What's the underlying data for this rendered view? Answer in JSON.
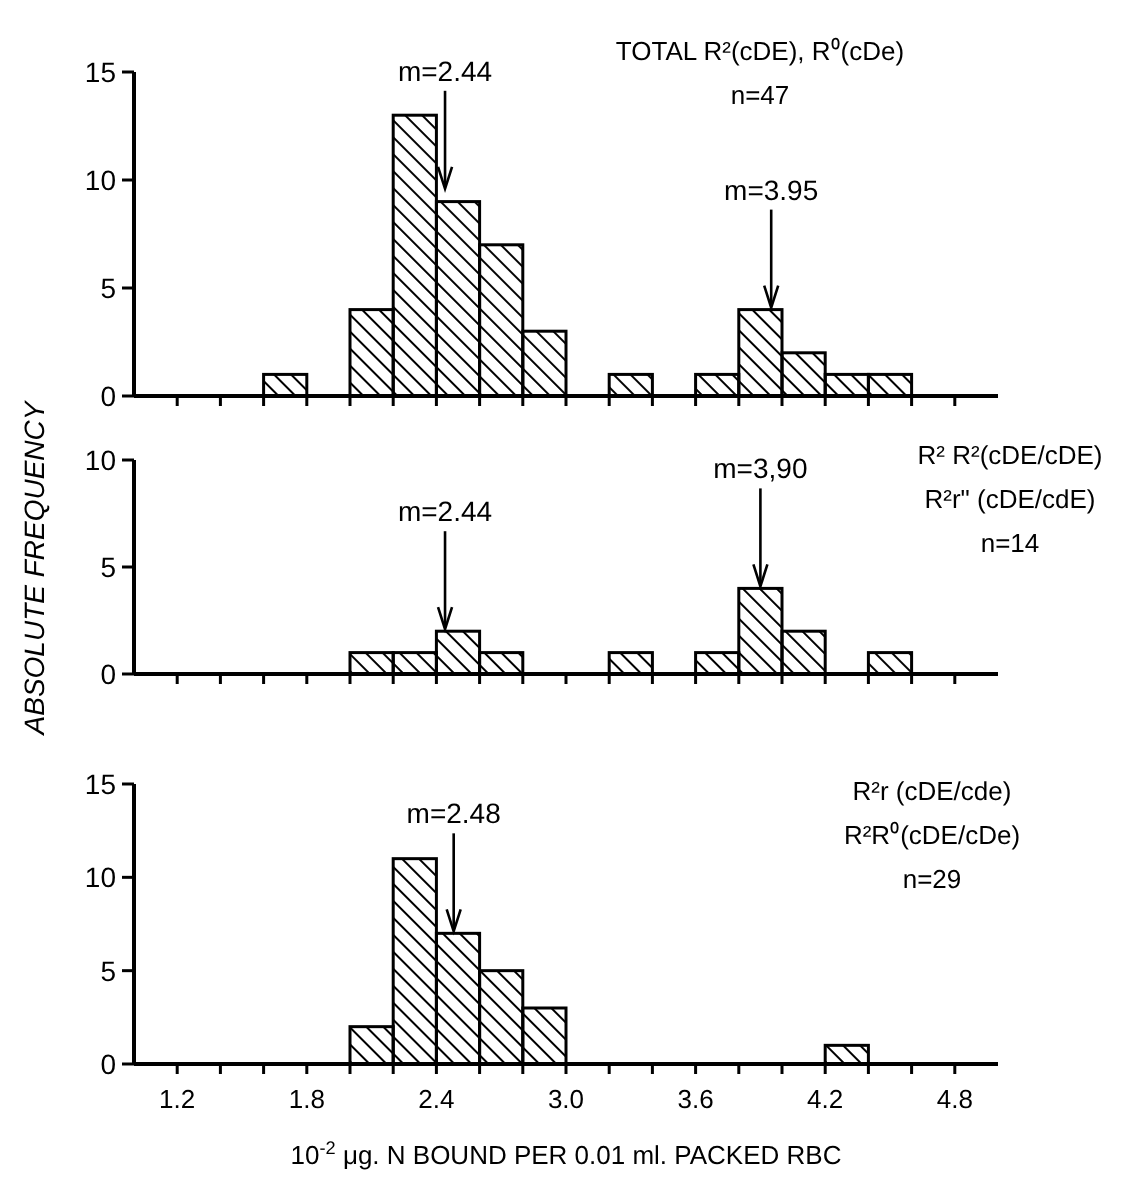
{
  "chart_data": [
    {
      "type": "histogram",
      "bins": [
        1.0,
        1.2,
        1.4,
        1.6,
        1.8,
        2.0,
        2.2,
        2.4,
        2.6,
        2.8,
        3.0,
        3.2,
        3.4,
        3.6,
        3.8,
        4.0,
        4.2,
        4.4,
        4.6,
        4.8,
        5.0
      ],
      "values": [
        0,
        0,
        0,
        1,
        0,
        4,
        13,
        9,
        7,
        3,
        0,
        1,
        0,
        1,
        4,
        2,
        1,
        1,
        0,
        0
      ],
      "color": "#000000",
      "xlim": [
        1.0,
        5.0
      ],
      "xticks": [
        {
          "value": 1.2,
          "label": null
        },
        {
          "value": 1.4,
          "label": null
        },
        {
          "value": 1.6,
          "label": null
        },
        {
          "value": 1.8,
          "label": null
        },
        {
          "value": 2.0,
          "label": null
        },
        {
          "value": 2.2,
          "label": null
        },
        {
          "value": 2.4,
          "label": null
        },
        {
          "value": 2.6,
          "label": null
        },
        {
          "value": 2.8,
          "label": null
        },
        {
          "value": 3.0,
          "label": null
        },
        {
          "value": 3.2,
          "label": null
        },
        {
          "value": 3.4,
          "label": null
        },
        {
          "value": 3.6,
          "label": null
        },
        {
          "value": 3.8,
          "label": null
        },
        {
          "value": 4.0,
          "label": null
        },
        {
          "value": 4.2,
          "label": null
        },
        {
          "value": 4.4,
          "label": null
        },
        {
          "value": 4.6,
          "label": null
        },
        {
          "value": 4.8,
          "label": null
        }
      ],
      "ylim": [
        0,
        15
      ],
      "yticks": [
        0,
        5,
        10,
        15
      ],
      "tick_labels": "y",
      "annotations": [
        "TOTAL R²(cDE), R⁰(cDe)",
        "n=47",
        {
          "text": "m=2.44",
          "x": 2.44,
          "y": 9.5
        },
        {
          "text": "m=3.95",
          "x": 3.95,
          "y": 4
        }
      ]
    },
    {
      "type": "histogram",
      "bins": [
        1.0,
        1.2,
        1.4,
        1.6,
        1.8,
        2.0,
        2.2,
        2.4,
        2.6,
        2.8,
        3.0,
        3.2,
        3.4,
        3.6,
        3.8,
        4.0,
        4.2,
        4.4,
        4.6,
        4.8,
        5.0
      ],
      "values": [
        0,
        0,
        0,
        0,
        0,
        1,
        1,
        2,
        1,
        0,
        0,
        1,
        0,
        1,
        4,
        2,
        0,
        1,
        0,
        0
      ],
      "color": "#000000",
      "xlim": [
        1.0,
        5.0
      ],
      "xticks": [
        {
          "value": 1.2,
          "label": null
        },
        {
          "value": 1.4,
          "label": null
        },
        {
          "value": 1.6,
          "label": null
        },
        {
          "value": 1.8,
          "label": null
        },
        {
          "value": 2.0,
          "label": null
        },
        {
          "value": 2.2,
          "label": null
        },
        {
          "value": 2.4,
          "label": null
        },
        {
          "value": 2.6,
          "label": null
        },
        {
          "value": 2.8,
          "label": null
        },
        {
          "value": 3.0,
          "label": null
        },
        {
          "value": 3.2,
          "label": null
        },
        {
          "value": 3.4,
          "label": null
        },
        {
          "value": 3.6,
          "label": null
        },
        {
          "value": 3.8,
          "label": null
        },
        {
          "value": 4.0,
          "label": null
        },
        {
          "value": 4.2,
          "label": null
        },
        {
          "value": 4.4,
          "label": null
        },
        {
          "value": 4.6,
          "label": null
        },
        {
          "value": 4.8,
          "label": null
        }
      ],
      "ylim": [
        0,
        10
      ],
      "yticks": [
        0,
        5,
        10
      ],
      "tick_labels": "y",
      "ylabel": "ABSOLUTE FREQUENCY",
      "annotations": [
        "R² R²(cDE/cDE)",
        "R²r\" (cDE/cdE)",
        "n=14",
        {
          "text": "m=2.44",
          "x": 2.44,
          "y": 2
        },
        {
          "text": "m=3,90",
          "x": 3.9,
          "y": 4
        }
      ]
    },
    {
      "type": "histogram",
      "bins": [
        1.0,
        1.2,
        1.4,
        1.6,
        1.8,
        2.0,
        2.2,
        2.4,
        2.6,
        2.8,
        3.0,
        3.2,
        3.4,
        3.6,
        3.8,
        4.0,
        4.2,
        4.4,
        4.6,
        4.8,
        5.0
      ],
      "values": [
        0,
        0,
        0,
        0,
        0,
        2,
        11,
        7,
        5,
        3,
        0,
        0,
        0,
        0,
        0,
        0,
        1,
        0,
        0,
        0
      ],
      "color": "#000000",
      "xlim": [
        1.0,
        5.0
      ],
      "xticks": [
        {
          "value": 1.2,
          "label": "1.2"
        },
        {
          "value": 1.4,
          "label": null
        },
        {
          "value": 1.6,
          "label": null
        },
        {
          "value": 1.8,
          "label": "1.8"
        },
        {
          "value": 2.0,
          "label": null
        },
        {
          "value": 2.2,
          "label": null
        },
        {
          "value": 2.4,
          "label": "2.4"
        },
        {
          "value": 2.6,
          "label": null
        },
        {
          "value": 2.8,
          "label": null
        },
        {
          "value": 3.0,
          "label": "3.0"
        },
        {
          "value": 3.2,
          "label": null
        },
        {
          "value": 3.4,
          "label": null
        },
        {
          "value": 3.6,
          "label": "3.6"
        },
        {
          "value": 3.8,
          "label": null
        },
        {
          "value": 4.0,
          "label": null
        },
        {
          "value": 4.2,
          "label": "4.2"
        },
        {
          "value": 4.4,
          "label": null
        },
        {
          "value": 4.6,
          "label": null
        },
        {
          "value": 4.8,
          "label": "4.8"
        }
      ],
      "ylim": [
        0,
        15
      ],
      "yticks": [
        0,
        5,
        10,
        15
      ],
      "xlabel": "10$^{-2}$ μg. N BOUND PER 0.01 ml. PACKED RBC",
      "annotations": [
        "R²r (cDE/cde)",
        "R²R⁰(cDE/cDe)",
        "n=29",
        {
          "text": "m=2.48",
          "x": 2.48,
          "y": 7
        }
      ]
    }
  ]
}
